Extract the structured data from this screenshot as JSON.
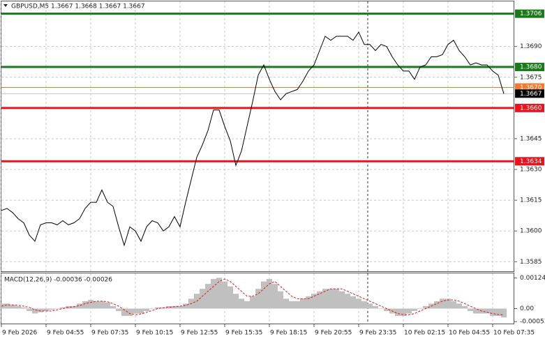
{
  "chart_data": [
    {
      "type": "line",
      "title": "GBPUSD,M5  1.3667 1.3668 1.3667 1.3667",
      "categories": [
        "9 Feb 2026",
        null,
        null,
        null,
        null,
        null,
        null,
        null,
        "9 Feb 04:55",
        null,
        null,
        null,
        null,
        null,
        null,
        null,
        "9 Feb 07:35",
        null,
        null,
        null,
        null,
        null,
        null,
        null,
        "9 Feb 10:15",
        null,
        null,
        null,
        null,
        null,
        null,
        null,
        "9 Feb 12:55",
        null,
        null,
        null,
        null,
        null,
        null,
        null,
        "9 Feb 15:35",
        null,
        null,
        null,
        null,
        null,
        null,
        null,
        "9 Feb 18:15",
        null,
        null,
        null,
        null,
        null,
        null,
        null,
        "9 Feb 20:55",
        null,
        null,
        null,
        null,
        null,
        null,
        null,
        "9 Feb 23:35",
        null,
        null,
        null,
        null,
        null,
        null,
        null,
        "10 Feb 02:15",
        null,
        null,
        null,
        null,
        null,
        null,
        null,
        "10 Feb 04:55",
        null,
        null,
        null,
        null,
        null,
        null,
        null,
        "10 Feb 07:35",
        null,
        null
      ],
      "values": [
        1.361,
        1.3611,
        1.3609,
        1.3606,
        1.3604,
        1.3598,
        1.3595,
        1.3603,
        1.3604,
        1.3604,
        1.3603,
        1.3605,
        1.3603,
        1.3604,
        1.3606,
        1.3611,
        1.3614,
        1.3614,
        1.362,
        1.3614,
        1.3612,
        1.3602,
        1.3593,
        1.3602,
        1.36,
        1.3595,
        1.3602,
        1.3605,
        1.3604,
        1.36,
        1.3602,
        1.3607,
        1.3602,
        1.3614,
        1.3625,
        1.3636,
        1.3642,
        1.3649,
        1.3659,
        1.3659,
        1.3651,
        1.3644,
        1.3632,
        1.3639,
        1.3651,
        1.3663,
        1.3676,
        1.3681,
        1.3674,
        1.3668,
        1.3664,
        1.3667,
        1.3668,
        1.3669,
        1.3673,
        1.3678,
        1.3681,
        1.3688,
        1.3695,
        1.3693,
        1.3695,
        1.3695,
        1.3695,
        1.3693,
        1.3697,
        1.3691,
        1.3691,
        1.3688,
        1.3691,
        1.369,
        1.3685,
        1.3681,
        1.3678,
        1.3678,
        1.3674,
        1.368,
        1.3681,
        1.3685,
        1.3685,
        1.3686,
        1.3691,
        1.3693,
        1.3688,
        1.3685,
        1.3681,
        1.3682,
        1.3681,
        1.3681,
        1.3678,
        1.3676,
        1.3667
      ],
      "color": "#000000",
      "ylim": [
        1.358,
        1.3712
      ],
      "yticks": [
        {
          "value": 1.3585,
          "label": "1.3585"
        },
        {
          "value": 1.36,
          "label": "1.3600"
        },
        {
          "value": 1.3615,
          "label": "1.3615"
        },
        {
          "value": 1.363,
          "label": "1.3630"
        },
        {
          "value": 1.3645,
          "label": "1.3645"
        },
        {
          "value": 1.3675,
          "label": "1.3675"
        },
        {
          "value": 1.369,
          "label": "1.3690"
        }
      ],
      "grid": true,
      "levels": [
        {
          "value": 1.3706,
          "label": "1.3706",
          "color": "#1a7a1a"
        },
        {
          "value": 1.368,
          "label": "1.3680",
          "color": "#1a7a1a"
        },
        {
          "value": 1.367,
          "label": "1.3670",
          "color": "#f47a30"
        },
        {
          "value": 1.3667,
          "label": "1.3667",
          "color": "#000000"
        },
        {
          "value": 1.366,
          "label": "1.3660",
          "color": "#e8141b"
        },
        {
          "value": 1.3634,
          "label": "1.3634",
          "color": "#e8141b"
        }
      ]
    },
    {
      "type": "macd",
      "title": "MACD(12,26,9) -0.00036 -0.00026",
      "ylim": [
        -0.00058,
        0.0014
      ],
      "yticks": [
        {
          "value": 0.00124,
          "label": "0.00124"
        },
        {
          "value": 0,
          "label": "0.00"
        },
        {
          "value": -0.00053,
          "label": "-0.00053"
        }
      ],
      "histogram": {
        "color": "#c0c0c0",
        "values": [
          0.0002,
          0.0002,
          0.00015,
          0.0001,
          5e-05,
          -0.0001,
          -0.0002,
          -0.00015,
          -0.0001,
          -5e-05,
          0,
          5e-05,
          0.0001,
          0.0001,
          0.0002,
          0.0003,
          0.00035,
          0.0003,
          0.0003,
          0.00025,
          0.0001,
          -0.0001,
          -0.0003,
          -0.0003,
          -0.0002,
          -0.0002,
          -0.0001,
          0,
          5e-05,
          5e-05,
          0.0001,
          0.0001,
          0.0001,
          0.0002,
          0.0004,
          0.0006,
          0.0008,
          0.001,
          0.0012,
          0.00125,
          0.0011,
          0.0009,
          0.0006,
          0.0004,
          0.0003,
          0.0005,
          0.0008,
          0.0011,
          0.0012,
          0.001,
          0.0007,
          0.0004,
          0.0003,
          0.0003,
          0.0004,
          0.0005,
          0.0006,
          0.0007,
          0.0008,
          0.0008,
          0.0008,
          0.0007,
          0.0006,
          0.0005,
          0.0004,
          0.0003,
          0.0002,
          0.0001,
          0,
          -0.0001,
          -0.0002,
          -0.0003,
          -0.0003,
          -0.0002,
          -0.0001,
          0,
          0.0001,
          0.0002,
          0.0003,
          0.0004,
          0.0004,
          0.0003,
          0.0002,
          0.0001,
          -0.0001,
          -0.0002,
          -0.0002,
          -0.0002,
          -0.0003,
          -0.0003,
          -0.00036
        ]
      },
      "signal": {
        "color": "#e8141b",
        "values": [
          0.0001,
          0.00015,
          0.00015,
          0.00013,
          0.0001,
          5e-05,
          -5e-05,
          -0.0001,
          -0.0001,
          -0.0001,
          -5e-05,
          0,
          5e-05,
          8e-05,
          0.00012,
          0.0002,
          0.00025,
          0.0003,
          0.0003,
          0.00028,
          0.0002,
          0.0001,
          -5e-05,
          -0.0002,
          -0.00025,
          -0.00022,
          -0.00015,
          -8e-05,
          0,
          3e-05,
          5e-05,
          8e-05,
          0.0001,
          0.00013,
          0.0002,
          0.0003,
          0.0005,
          0.0007,
          0.0009,
          0.0011,
          0.0012,
          0.0011,
          0.0009,
          0.0007,
          0.0005,
          0.0005,
          0.0006,
          0.0008,
          0.001,
          0.0011,
          0.0009,
          0.0007,
          0.0005,
          0.0004,
          0.0004,
          0.0004,
          0.0005,
          0.0006,
          0.0007,
          0.0008,
          0.0008,
          0.0008,
          0.0007,
          0.0006,
          0.0005,
          0.0004,
          0.0003,
          0.0002,
          0.0001,
          0,
          -0.0001,
          -0.0002,
          -0.00025,
          -0.00025,
          -0.0002,
          -0.0001,
          0,
          0.0001,
          0.0002,
          0.0003,
          0.00035,
          0.00035,
          0.0003,
          0.0002,
          0.0001,
          0,
          -0.0001,
          -0.00015,
          -0.0002,
          -0.00024,
          -0.00026
        ]
      }
    }
  ]
}
